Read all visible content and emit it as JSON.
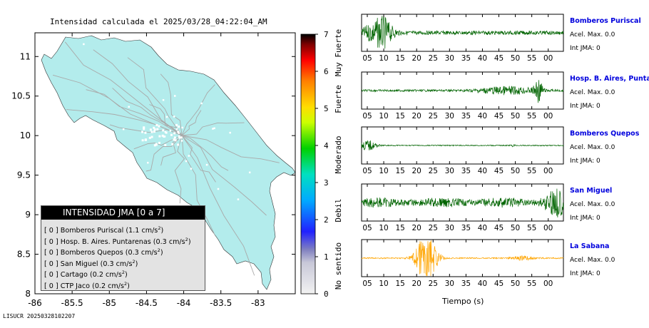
{
  "map": {
    "title": "Intensidad calculada el 2025/03/28_04:22:04_AM",
    "xlim": [
      -86.0,
      -82.5
    ],
    "ylim": [
      8.0,
      11.3
    ],
    "x_ticks": [
      -86,
      -85.5,
      -85,
      -84.5,
      -84,
      -83.5,
      -83
    ],
    "x_tick_labels": [
      "-86",
      "-85.5",
      "-85",
      "-84.5",
      "-84",
      "-83.5",
      "-83"
    ],
    "y_ticks": [
      8,
      8.5,
      9,
      9.5,
      10,
      10.5,
      11
    ],
    "y_tick_labels": [
      "8",
      "8.5",
      "9",
      "9.5",
      "10",
      "10.5",
      "11"
    ],
    "land_color": "#b3ecec",
    "road_color": "#a9a9a9",
    "footer_id": "LISUCR 20250328102207"
  },
  "colorbar": {
    "min": 0,
    "max": 7,
    "ticks": [
      "0",
      "1",
      "2",
      "3",
      "4",
      "5",
      "6",
      "7"
    ],
    "categories": [
      {
        "label": "No sentido",
        "from": 0,
        "to": 1.5
      },
      {
        "label": "Debil",
        "from": 1.5,
        "to": 3
      },
      {
        "label": "Moderado",
        "from": 3,
        "to": 4.5
      },
      {
        "label": "Fuerte",
        "from": 4.5,
        "to": 6
      },
      {
        "label": "Muy Fuerte",
        "from": 6,
        "to": 7
      }
    ],
    "colors": [
      "#f0f0f0",
      "#7a7abf",
      "#0000ff",
      "#00bfff",
      "#00e000",
      "#ffff00",
      "#ff8c00",
      "#ff0000",
      "#000000"
    ]
  },
  "legend": {
    "title": "INTENSIDAD JMA [0 a 7]",
    "items": [
      {
        "intensity": "[ 0 ]",
        "name": "Bomberos Puriscal",
        "value": "(1.1 cm/s",
        "sup": "2",
        "close": ")"
      },
      {
        "intensity": "[ 0 ]",
        "name": "Hosp. B. Aires. Puntarenas",
        "value": "(0.3 cm/s",
        "sup": "2",
        "close": ")"
      },
      {
        "intensity": "[ 0 ]",
        "name": "Bomberos Quepos",
        "value": "(0.3 cm/s",
        "sup": "2",
        "close": ")"
      },
      {
        "intensity": "[ 0 ]",
        "name": "San Miguel",
        "value": "(0.3 cm/s",
        "sup": "2",
        "close": ")"
      },
      {
        "intensity": "[ 0 ]",
        "name": "Cartago",
        "value": "(0.2 cm/s",
        "sup": "2",
        "close": ")"
      },
      {
        "intensity": "[ 0 ]",
        "name": "CTP Jaco",
        "value": "(0.2 cm/s",
        "sup": "2",
        "close": ")"
      }
    ]
  },
  "waveforms": {
    "xlabel": "Tiempo (s)",
    "axis_ticks": [
      "05",
      "10",
      "15",
      "20",
      "25",
      "30",
      "35",
      "40",
      "45",
      "50",
      "55",
      "00"
    ],
    "panels": [
      {
        "station": "Bomberos Puriscal",
        "acel": "Acel. Max. 0.0",
        "int": "Int JMA: 0",
        "color": "#006400"
      },
      {
        "station": "Hosp. B. Aires, Puntare",
        "acel": "Acel. Max. 0.0",
        "int": "Int JMA: 0",
        "color": "#006400"
      },
      {
        "station": "Bomberos Quepos",
        "acel": "Acel. Max. 0.0",
        "int": "Int JMA: 0",
        "color": "#006400"
      },
      {
        "station": "San Miguel",
        "acel": "Acel. Max. 0.0",
        "int": "Int JMA: 0",
        "color": "#006400"
      },
      {
        "station": "La Sabana",
        "acel": "Acel. Max. 0.0",
        "int": "Int JMA: 0",
        "color": "#ffa500"
      }
    ]
  },
  "chart_data": [
    {
      "type": "scatter",
      "title": "Intensidad calculada el 2025/03/28_04:22:04_AM",
      "xlabel": "",
      "ylabel": "",
      "xlim": [
        -86,
        -82.5
      ],
      "ylim": [
        8,
        11.3
      ],
      "legend": "bottom-left",
      "series": [
        {
          "name": "INTENSIDAD JMA [0 a 7]",
          "labels": [
            "Bomberos Puriscal",
            "Hosp. B. Aires. Puntarenas",
            "Bomberos Quepos",
            "San Miguel",
            "Cartago",
            "CTP Jaco"
          ],
          "values": [
            0,
            0,
            0,
            0,
            0,
            0
          ],
          "pga": [
            1.1,
            0.3,
            0.3,
            0.3,
            0.2,
            0.2
          ]
        }
      ]
    },
    {
      "type": "line",
      "xlabel": "Tiempo (s)",
      "x_ticks": [
        "05",
        "10",
        "15",
        "20",
        "25",
        "30",
        "35",
        "40",
        "45",
        "50",
        "55",
        "00"
      ],
      "series": [
        {
          "name": "Bomberos Puriscal",
          "values": []
        },
        {
          "name": "Hosp. B. Aires, Puntare",
          "values": []
        },
        {
          "name": "Bomberos Quepos",
          "values": []
        },
        {
          "name": "San Miguel",
          "values": []
        },
        {
          "name": "La Sabana",
          "values": []
        }
      ]
    }
  ]
}
